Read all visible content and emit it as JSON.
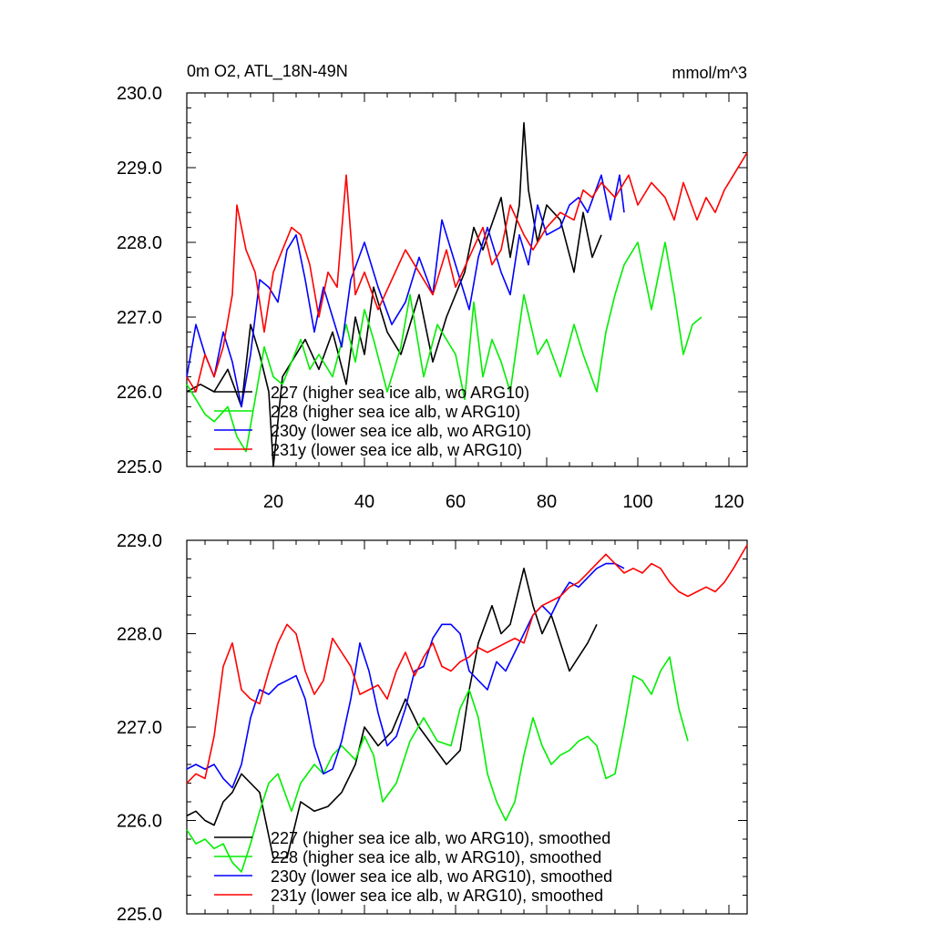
{
  "chart_data": [
    {
      "type": "line",
      "title": "0m O2, ATL_18N-49N",
      "units": "mmol/m^3",
      "xlim": [
        1,
        124
      ],
      "ylim": [
        225.0,
        230.0
      ],
      "x_ticks": [
        20,
        40,
        60,
        80,
        100,
        120
      ],
      "y_ticks": [
        "225.0",
        "226.0",
        "227.0",
        "228.0",
        "229.0",
        "230.0"
      ],
      "grid": false,
      "legend_position": "bottom-left",
      "series": [
        {
          "name": "227 (higher sea ice alb, wo ARG10)",
          "color": "#000000",
          "x": [
            1,
            4,
            7,
            10,
            13,
            15,
            17,
            19,
            20,
            22,
            24,
            27,
            30,
            33,
            36,
            38,
            40,
            42,
            45,
            48,
            52,
            55,
            58,
            62,
            64,
            66,
            70,
            72,
            74,
            75,
            76,
            78,
            80,
            83,
            86,
            88,
            90,
            92
          ],
          "y": [
            226.0,
            226.1,
            226.0,
            226.3,
            225.8,
            226.9,
            226.5,
            226.0,
            225.0,
            226.2,
            226.4,
            226.7,
            226.3,
            226.8,
            226.1,
            227.0,
            226.5,
            227.4,
            226.8,
            226.5,
            227.3,
            226.4,
            227.0,
            227.6,
            228.2,
            227.9,
            228.6,
            227.8,
            228.5,
            229.6,
            228.7,
            228.0,
            228.5,
            228.3,
            227.6,
            228.4,
            227.8,
            228.1
          ]
        },
        {
          "name": "228 (higher sea ice alb, w ARG10)",
          "color": "#00ee00",
          "x": [
            1,
            3,
            5,
            7,
            10,
            12,
            14,
            16,
            18,
            20,
            22,
            24,
            26,
            28,
            30,
            33,
            36,
            38,
            40,
            42,
            45,
            48,
            50,
            53,
            56,
            60,
            62,
            64,
            66,
            68,
            70,
            72,
            75,
            78,
            80,
            83,
            86,
            88,
            91,
            93,
            95,
            97,
            100,
            103,
            106,
            108,
            110,
            112,
            114
          ],
          "y": [
            226.1,
            225.9,
            225.7,
            225.6,
            225.8,
            225.4,
            225.2,
            225.9,
            226.6,
            226.2,
            226.1,
            226.4,
            226.7,
            226.3,
            226.5,
            226.2,
            226.9,
            226.4,
            227.1,
            226.7,
            226.0,
            226.6,
            227.3,
            226.2,
            226.9,
            226.5,
            225.9,
            227.2,
            226.2,
            226.7,
            226.4,
            226.0,
            227.3,
            226.5,
            226.7,
            226.2,
            226.9,
            226.5,
            226.0,
            226.8,
            227.3,
            227.7,
            228.0,
            227.1,
            228.0,
            227.3,
            226.5,
            226.9,
            227.0
          ]
        },
        {
          "name": "230y (lower sea ice alb, wo ARG10)",
          "color": "#0000ff",
          "x": [
            1,
            3,
            5,
            7,
            9,
            11,
            13,
            15,
            17,
            19,
            21,
            23,
            25,
            27,
            29,
            31,
            33,
            35,
            37,
            40,
            43,
            46,
            49,
            52,
            55,
            57,
            60,
            63,
            65,
            67,
            70,
            72,
            74,
            76,
            78,
            80,
            83,
            85,
            87,
            89,
            92,
            94,
            96,
            97
          ],
          "y": [
            226.2,
            226.9,
            226.5,
            226.2,
            226.8,
            226.4,
            225.8,
            226.5,
            227.5,
            227.4,
            227.2,
            227.9,
            228.1,
            227.5,
            226.8,
            227.4,
            227.0,
            226.6,
            227.5,
            228.0,
            227.4,
            226.9,
            227.2,
            227.8,
            227.3,
            228.3,
            227.7,
            227.1,
            227.8,
            228.2,
            227.6,
            227.3,
            228.1,
            227.7,
            228.5,
            228.1,
            228.2,
            228.5,
            228.6,
            228.4,
            228.9,
            228.3,
            228.9,
            228.4
          ]
        },
        {
          "name": "231y (lower sea ice alb, w ARG10)",
          "color": "#ff0000",
          "x": [
            1,
            3,
            5,
            7,
            9,
            11,
            12,
            14,
            16,
            18,
            20,
            22,
            24,
            26,
            28,
            30,
            32,
            34,
            36,
            38,
            40,
            43,
            46,
            49,
            52,
            55,
            58,
            60,
            63,
            66,
            68,
            70,
            72,
            75,
            77,
            80,
            83,
            86,
            88,
            90,
            92,
            95,
            98,
            100,
            103,
            106,
            108,
            110,
            113,
            115,
            117,
            119,
            121,
            124
          ],
          "y": [
            226.2,
            226.0,
            226.5,
            226.2,
            226.6,
            227.3,
            228.5,
            227.9,
            227.6,
            226.8,
            227.6,
            227.9,
            228.2,
            228.1,
            227.7,
            227.0,
            227.6,
            227.4,
            228.9,
            227.3,
            227.6,
            227.1,
            227.5,
            227.9,
            227.6,
            227.3,
            227.9,
            227.4,
            227.8,
            228.2,
            227.7,
            227.9,
            228.5,
            228.1,
            227.9,
            228.2,
            228.4,
            228.3,
            228.7,
            228.6,
            228.8,
            228.6,
            228.9,
            228.5,
            228.8,
            228.6,
            228.3,
            228.8,
            228.3,
            228.6,
            228.4,
            228.7,
            228.9,
            229.2
          ]
        }
      ]
    },
    {
      "type": "line",
      "title": "",
      "units": "",
      "xlim": [
        1,
        124
      ],
      "ylim": [
        225.0,
        229.0
      ],
      "x_ticks": [
        20,
        40,
        60,
        80,
        100,
        120
      ],
      "y_ticks": [
        "225.0",
        "226.0",
        "227.0",
        "228.0",
        "229.0"
      ],
      "grid": false,
      "legend_position": "bottom-left",
      "series": [
        {
          "name": "227 (higher sea ice alb, wo ARG10), smoothed",
          "color": "#000000",
          "x": [
            1,
            3,
            5,
            7,
            9,
            11,
            13,
            15,
            17,
            20,
            23,
            26,
            29,
            32,
            35,
            38,
            40,
            43,
            46,
            49,
            52,
            55,
            58,
            61,
            63,
            65,
            68,
            70,
            72,
            74,
            75,
            77,
            79,
            81,
            83,
            85,
            87,
            89,
            91
          ],
          "y": [
            226.05,
            226.1,
            226.0,
            225.95,
            226.2,
            226.3,
            226.5,
            226.4,
            226.3,
            225.6,
            225.6,
            226.2,
            226.1,
            226.15,
            226.3,
            226.6,
            227.0,
            226.8,
            226.95,
            227.3,
            227.0,
            226.8,
            226.6,
            226.75,
            227.4,
            227.9,
            228.3,
            228.0,
            228.1,
            228.5,
            228.7,
            228.3,
            228.0,
            228.2,
            227.9,
            227.6,
            227.75,
            227.9,
            228.1
          ]
        },
        {
          "name": "228 (higher sea ice alb, w ARG10), smoothed",
          "color": "#00ee00",
          "x": [
            1,
            3,
            5,
            7,
            9,
            11,
            13,
            15,
            17,
            19,
            21,
            24,
            26,
            29,
            31,
            33,
            35,
            38,
            40,
            42,
            44,
            47,
            50,
            53,
            56,
            59,
            61,
            63,
            65,
            67,
            69,
            71,
            73,
            75,
            77,
            79,
            81,
            83,
            85,
            87,
            89,
            91,
            93,
            95,
            97,
            99,
            101,
            103,
            105,
            107,
            109,
            111
          ],
          "y": [
            225.9,
            225.75,
            225.8,
            225.7,
            225.75,
            225.55,
            225.45,
            225.75,
            226.1,
            226.4,
            226.5,
            226.1,
            226.4,
            226.6,
            226.5,
            226.7,
            226.8,
            226.65,
            226.9,
            226.7,
            226.2,
            226.4,
            226.85,
            227.1,
            226.85,
            226.8,
            227.2,
            227.4,
            227.1,
            226.5,
            226.2,
            226.0,
            226.2,
            226.7,
            227.1,
            226.8,
            226.6,
            226.7,
            226.75,
            226.85,
            226.9,
            226.8,
            226.45,
            226.5,
            227.0,
            227.55,
            227.5,
            227.35,
            227.6,
            227.75,
            227.2,
            226.85
          ]
        },
        {
          "name": "230y (lower sea ice alb, wo ARG10), smoothed",
          "color": "#0000ff",
          "x": [
            1,
            3,
            5,
            7,
            9,
            11,
            13,
            15,
            17,
            19,
            21,
            23,
            25,
            27,
            29,
            31,
            33,
            35,
            37,
            39,
            41,
            43,
            45,
            47,
            49,
            51,
            53,
            55,
            57,
            59,
            61,
            63,
            65,
            67,
            69,
            71,
            73,
            75,
            77,
            79,
            81,
            83,
            85,
            87,
            89,
            91,
            93,
            95,
            97
          ],
          "y": [
            226.55,
            226.6,
            226.55,
            226.6,
            226.45,
            226.35,
            226.6,
            227.1,
            227.4,
            227.35,
            227.45,
            227.5,
            227.55,
            227.3,
            226.8,
            226.5,
            226.55,
            226.85,
            227.3,
            227.9,
            227.6,
            227.15,
            226.8,
            226.9,
            227.2,
            227.6,
            227.65,
            227.95,
            228.1,
            228.1,
            228.0,
            227.6,
            227.5,
            227.4,
            227.7,
            227.6,
            227.8,
            228.0,
            228.2,
            228.3,
            228.2,
            228.4,
            228.55,
            228.5,
            228.6,
            228.7,
            228.75,
            228.75,
            228.7
          ]
        },
        {
          "name": "231y (lower sea ice alb, w ARG10), smoothed",
          "color": "#ff0000",
          "x": [
            1,
            3,
            5,
            7,
            9,
            11,
            13,
            15,
            17,
            19,
            21,
            23,
            25,
            27,
            29,
            31,
            33,
            35,
            37,
            39,
            41,
            43,
            45,
            47,
            49,
            51,
            53,
            55,
            57,
            59,
            61,
            63,
            65,
            67,
            69,
            71,
            73,
            75,
            77,
            79,
            81,
            83,
            85,
            87,
            89,
            91,
            93,
            95,
            97,
            99,
            101,
            103,
            105,
            107,
            109,
            111,
            113,
            115,
            117,
            119,
            121,
            124
          ],
          "y": [
            226.4,
            226.5,
            226.45,
            226.9,
            227.65,
            227.9,
            227.4,
            227.3,
            227.25,
            227.6,
            227.9,
            228.1,
            228.0,
            227.6,
            227.35,
            227.5,
            227.95,
            227.8,
            227.65,
            227.35,
            227.4,
            227.45,
            227.3,
            227.6,
            227.8,
            227.55,
            227.75,
            227.9,
            227.65,
            227.6,
            227.7,
            227.75,
            227.85,
            227.8,
            227.85,
            227.9,
            227.95,
            227.9,
            228.2,
            228.3,
            228.35,
            228.4,
            228.5,
            228.55,
            228.65,
            228.75,
            228.85,
            228.75,
            228.65,
            228.7,
            228.65,
            228.75,
            228.7,
            228.55,
            228.45,
            228.4,
            228.45,
            228.5,
            228.45,
            228.55,
            228.7,
            228.95
          ]
        }
      ]
    }
  ]
}
